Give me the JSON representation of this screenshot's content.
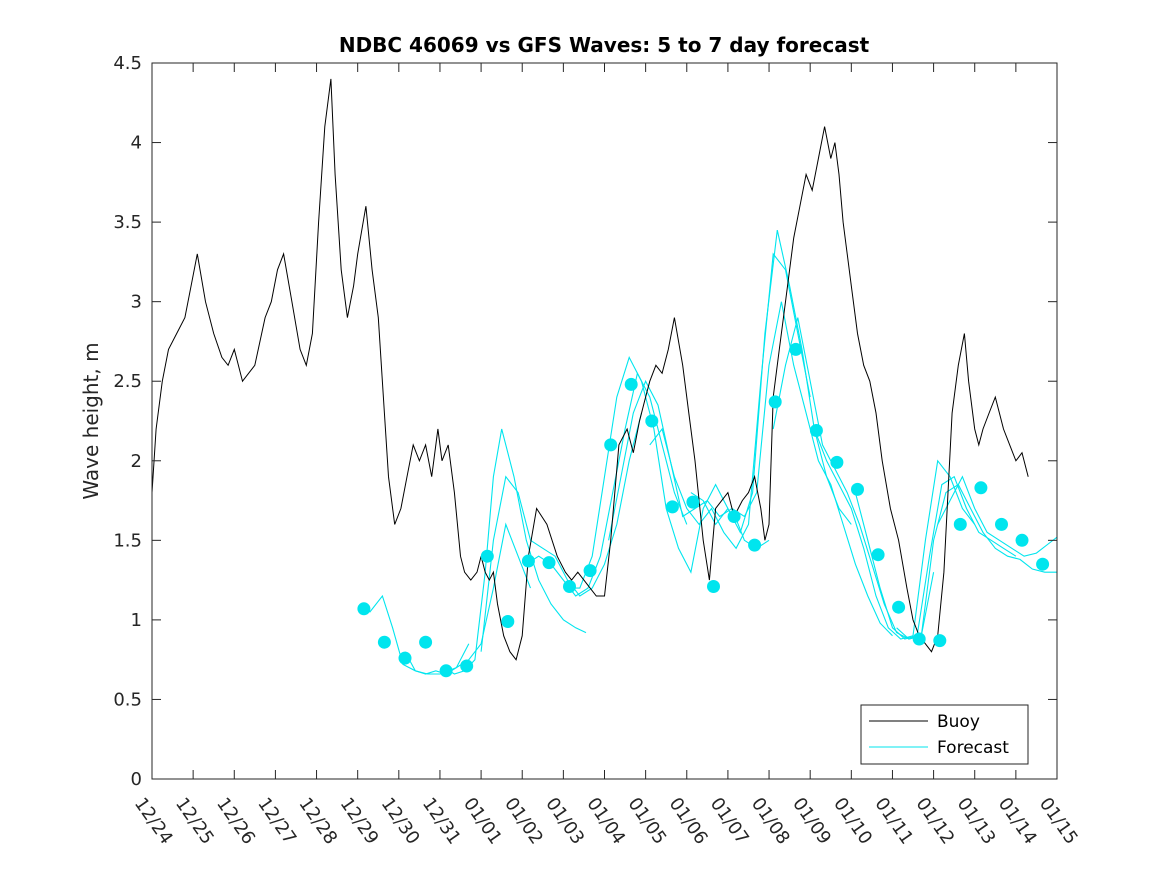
{
  "chart_data": {
    "type": "line",
    "title": "NDBC 46069 vs GFS Waves: 5 to 7 day forecast",
    "xlabel": "",
    "ylabel": "Wave height, m",
    "xlim": [
      0,
      22
    ],
    "ylim": [
      0,
      4.5
    ],
    "yticks": [
      0,
      0.5,
      1,
      1.5,
      2,
      2.5,
      3,
      3.5,
      4,
      4.5
    ],
    "ytick_labels": [
      "0",
      "0.5",
      "1",
      "1.5",
      "2",
      "2.5",
      "3",
      "3.5",
      "4",
      "4.5"
    ],
    "xtick_labels": [
      "12/24",
      "12/25",
      "12/26",
      "12/27",
      "12/28",
      "12/29",
      "12/30",
      "12/31",
      "01/01",
      "01/02",
      "01/03",
      "01/04",
      "01/05",
      "01/06",
      "01/07",
      "01/08",
      "01/09",
      "01/10",
      "01/11",
      "01/12",
      "01/13",
      "01/14",
      "01/15"
    ],
    "grid": false,
    "legend_position": "bottom-right",
    "series": [
      {
        "name": "Buoy",
        "color": "#000000",
        "x": [
          0,
          0.1,
          0.25,
          0.4,
          0.6,
          0.8,
          0.95,
          1.1,
          1.3,
          1.5,
          1.7,
          1.85,
          2.0,
          2.2,
          2.5,
          2.75,
          2.9,
          3.05,
          3.2,
          3.4,
          3.6,
          3.75,
          3.9,
          4.05,
          4.2,
          4.35,
          4.45,
          4.6,
          4.75,
          4.9,
          5.0,
          5.2,
          5.35,
          5.5,
          5.65,
          5.75,
          5.9,
          6.05,
          6.2,
          6.35,
          6.5,
          6.65,
          6.8,
          6.95,
          7.05,
          7.2,
          7.35,
          7.5,
          7.6,
          7.75,
          7.9,
          8.0,
          8.1,
          8.2,
          8.3,
          8.4,
          8.55,
          8.7,
          8.85,
          9.0,
          9.15,
          9.35,
          9.6,
          9.85,
          10.05,
          10.2,
          10.35,
          10.5,
          10.65,
          10.8,
          11.0,
          11.15,
          11.35,
          11.55,
          11.7,
          11.85,
          12.0,
          12.1,
          12.25,
          12.4,
          12.55,
          12.7,
          12.9,
          13.05,
          13.2,
          13.4,
          13.55,
          13.7,
          13.85,
          14.0,
          14.15,
          14.35,
          14.5,
          14.65,
          14.8,
          14.9,
          15.0,
          15.1,
          15.25,
          15.4,
          15.6,
          15.75,
          15.9,
          16.05,
          16.2,
          16.35,
          16.5,
          16.6,
          16.7,
          16.8,
          16.9,
          17.0,
          17.15,
          17.3,
          17.45,
          17.6,
          17.75,
          17.95,
          18.15,
          18.35,
          18.5,
          18.65,
          18.8,
          18.95,
          19.1,
          19.25,
          19.35,
          19.45,
          19.6,
          19.75,
          19.85,
          20.0,
          20.1,
          20.2,
          20.35,
          20.5,
          20.6,
          20.7,
          20.85,
          21.0,
          21.15,
          21.3
        ],
        "y": [
          1.8,
          2.2,
          2.5,
          2.7,
          2.8,
          2.9,
          3.1,
          3.3,
          3.0,
          2.8,
          2.65,
          2.6,
          2.7,
          2.5,
          2.6,
          2.9,
          3.0,
          3.2,
          3.3,
          3.0,
          2.7,
          2.6,
          2.8,
          3.5,
          4.1,
          4.4,
          3.8,
          3.2,
          2.9,
          3.1,
          3.3,
          3.6,
          3.2,
          2.9,
          2.3,
          1.9,
          1.6,
          1.7,
          1.9,
          2.1,
          2.0,
          2.1,
          1.9,
          2.2,
          2.0,
          2.1,
          1.8,
          1.4,
          1.3,
          1.25,
          1.3,
          1.4,
          1.3,
          1.25,
          1.3,
          1.1,
          0.9,
          0.8,
          0.75,
          0.9,
          1.4,
          1.7,
          1.6,
          1.4,
          1.3,
          1.25,
          1.3,
          1.25,
          1.2,
          1.15,
          1.15,
          1.5,
          2.1,
          2.2,
          2.05,
          2.25,
          2.4,
          2.5,
          2.6,
          2.55,
          2.7,
          2.9,
          2.6,
          2.3,
          2.0,
          1.5,
          1.25,
          1.7,
          1.75,
          1.8,
          1.65,
          1.75,
          1.8,
          1.9,
          1.7,
          1.5,
          1.6,
          2.4,
          2.7,
          3.0,
          3.4,
          3.6,
          3.8,
          3.7,
          3.9,
          4.1,
          3.9,
          4.0,
          3.8,
          3.5,
          3.3,
          3.1,
          2.8,
          2.6,
          2.5,
          2.3,
          2.0,
          1.7,
          1.5,
          1.2,
          1.0,
          0.9,
          0.85,
          0.8,
          0.9,
          1.3,
          1.8,
          2.3,
          2.6,
          2.8,
          2.5,
          2.2,
          2.1,
          2.2,
          2.3,
          2.4,
          2.3,
          2.2,
          2.1,
          2.0,
          2.05,
          1.9
        ]
      },
      {
        "name": "Forecast",
        "color": "#00e5ee",
        "marker_x": [
          5.15,
          5.65,
          6.15,
          6.65,
          7.15,
          7.65,
          8.15,
          8.65,
          9.15,
          9.65,
          10.15,
          10.65,
          11.15,
          11.65,
          12.15,
          12.65,
          13.15,
          13.65,
          14.15,
          14.65,
          15.15,
          15.65,
          16.15,
          16.65,
          17.15,
          17.65,
          18.15,
          18.65,
          19.15,
          19.65,
          20.15,
          20.65,
          21.15,
          21.65
        ],
        "marker_y": [
          1.07,
          0.86,
          0.76,
          0.86,
          0.68,
          0.71,
          1.4,
          0.99,
          1.37,
          1.36,
          1.21,
          1.31,
          2.1,
          2.48,
          2.25,
          1.71,
          1.74,
          1.21,
          1.65,
          1.47,
          2.37,
          2.7,
          2.19,
          1.99,
          1.82,
          1.41,
          1.08,
          0.88,
          0.87,
          1.6,
          1.83,
          1.6,
          1.5,
          1.35
        ]
      }
    ],
    "forecast_runs": [
      {
        "x": [
          5.05,
          5.3,
          5.6,
          5.85,
          6.1,
          6.4,
          6.7,
          7.0,
          7.4,
          7.7
        ],
        "y": [
          1.1,
          1.05,
          1.15,
          0.95,
          0.72,
          0.68,
          0.66,
          0.66,
          0.7,
          0.85
        ]
      },
      {
        "x": [
          6.15,
          6.4,
          6.65,
          6.9,
          7.15,
          7.4,
          7.7,
          8.0,
          8.3,
          8.6,
          8.9,
          9.2
        ],
        "y": [
          0.8,
          0.68,
          0.66,
          0.68,
          0.66,
          0.7,
          0.75,
          0.85,
          1.2,
          1.6,
          1.4,
          1.2
        ]
      },
      {
        "x": [
          7.1,
          7.35,
          7.6,
          7.85,
          8.1,
          8.3,
          8.5,
          8.8,
          9.1,
          9.4,
          9.7,
          10.0,
          10.3,
          10.55
        ],
        "y": [
          0.7,
          0.66,
          0.68,
          0.75,
          1.3,
          1.9,
          2.2,
          1.9,
          1.5,
          1.25,
          1.1,
          1.0,
          0.95,
          0.92
        ]
      },
      {
        "x": [
          8.0,
          8.3,
          8.6,
          8.9,
          9.2,
          9.5,
          9.8,
          10.1,
          10.4,
          10.7,
          11.0,
          11.3,
          11.6,
          11.9
        ],
        "y": [
          0.8,
          1.5,
          1.9,
          1.8,
          1.5,
          1.45,
          1.4,
          1.25,
          1.15,
          1.2,
          1.35,
          1.6,
          2.0,
          2.3
        ]
      },
      {
        "x": [
          9.1,
          9.4,
          9.7,
          10.0,
          10.3,
          10.6,
          10.9,
          11.2,
          11.5,
          11.8,
          12.1,
          12.4,
          12.7,
          13.0
        ],
        "y": [
          1.35,
          1.4,
          1.35,
          1.25,
          1.15,
          1.2,
          1.4,
          1.8,
          2.2,
          2.55,
          2.4,
          2.1,
          1.8,
          1.6
        ]
      },
      {
        "x": [
          10.1,
          10.4,
          10.7,
          11.0,
          11.3,
          11.6,
          11.9,
          12.2,
          12.5,
          12.8,
          13.1,
          13.4,
          13.7,
          14.0
        ],
        "y": [
          1.2,
          1.2,
          1.4,
          1.9,
          2.4,
          2.65,
          2.5,
          2.2,
          1.7,
          1.45,
          1.3,
          1.7,
          1.85,
          1.7
        ]
      },
      {
        "x": [
          11.1,
          11.4,
          11.7,
          12.0,
          12.3,
          12.6,
          12.9,
          13.2,
          13.5,
          13.8,
          14.1,
          14.4,
          14.7,
          15.0
        ],
        "y": [
          1.5,
          1.9,
          2.3,
          2.5,
          2.35,
          2.0,
          1.65,
          1.7,
          1.75,
          1.65,
          1.7,
          1.5,
          1.45,
          1.5
        ]
      },
      {
        "x": [
          12.1,
          12.4,
          12.7,
          13.0,
          13.3,
          13.6,
          13.9,
          14.2,
          14.5,
          14.8,
          15.1,
          15.4,
          15.7,
          16.0
        ],
        "y": [
          2.1,
          2.2,
          1.9,
          1.7,
          1.6,
          1.7,
          1.55,
          1.45,
          1.6,
          2.5,
          3.3,
          3.2,
          2.8,
          2.4
        ]
      },
      {
        "x": [
          13.1,
          13.4,
          13.7,
          14.0,
          14.3,
          14.6,
          14.9,
          15.2,
          15.5,
          15.8,
          16.1,
          16.4,
          16.7,
          17.0
        ],
        "y": [
          1.8,
          1.75,
          1.6,
          1.7,
          1.55,
          1.8,
          2.8,
          3.45,
          3.1,
          2.7,
          2.2,
          1.9,
          1.7,
          1.6
        ]
      },
      {
        "x": [
          14.1,
          14.4,
          14.7,
          15.0,
          15.3,
          15.6,
          15.9,
          16.2,
          16.5,
          16.8,
          17.1,
          17.4,
          17.7,
          18.0
        ],
        "y": [
          1.7,
          1.65,
          1.8,
          2.6,
          3.0,
          2.6,
          2.3,
          2.0,
          1.85,
          1.6,
          1.35,
          1.15,
          0.98,
          0.9
        ]
      },
      {
        "x": [
          15.1,
          15.4,
          15.7,
          16.0,
          16.3,
          16.6,
          16.9,
          17.2,
          17.5,
          17.8,
          18.1,
          18.4,
          18.7,
          19.0
        ],
        "y": [
          2.2,
          2.6,
          2.9,
          2.5,
          2.1,
          1.95,
          1.8,
          1.6,
          1.35,
          1.1,
          0.92,
          0.88,
          0.9,
          1.3
        ]
      },
      {
        "x": [
          16.1,
          16.4,
          16.7,
          17.0,
          17.3,
          17.6,
          17.9,
          18.2,
          18.5,
          18.8,
          19.1,
          19.4,
          19.7,
          20.0
        ],
        "y": [
          2.2,
          2.0,
          1.85,
          1.7,
          1.45,
          1.15,
          0.95,
          0.88,
          0.9,
          1.5,
          2.0,
          1.9,
          1.7,
          1.6
        ]
      },
      {
        "x": [
          17.1,
          17.4,
          17.7,
          18.0,
          18.3,
          18.6,
          18.9,
          19.2,
          19.5,
          19.8,
          20.1,
          20.4,
          20.7,
          21.0
        ],
        "y": [
          1.8,
          1.5,
          1.2,
          0.95,
          0.88,
          0.9,
          1.4,
          1.85,
          1.9,
          1.7,
          1.55,
          1.5,
          1.45,
          1.4
        ]
      },
      {
        "x": [
          18.1,
          18.4,
          18.7,
          19.0,
          19.3,
          19.6,
          19.9,
          20.2,
          20.5,
          20.8,
          21.1,
          21.4,
          21.7,
          22.0
        ],
        "y": [
          0.95,
          0.88,
          0.9,
          1.5,
          1.8,
          1.85,
          1.7,
          1.55,
          1.45,
          1.4,
          1.38,
          1.32,
          1.3,
          1.3
        ]
      },
      {
        "x": [
          19.1,
          19.4,
          19.7,
          20.0,
          20.3,
          20.6,
          20.9,
          21.2,
          21.5,
          21.8,
          22.0
        ],
        "y": [
          1.6,
          1.75,
          1.9,
          1.7,
          1.55,
          1.5,
          1.45,
          1.4,
          1.42,
          1.48,
          1.52
        ]
      }
    ]
  }
}
